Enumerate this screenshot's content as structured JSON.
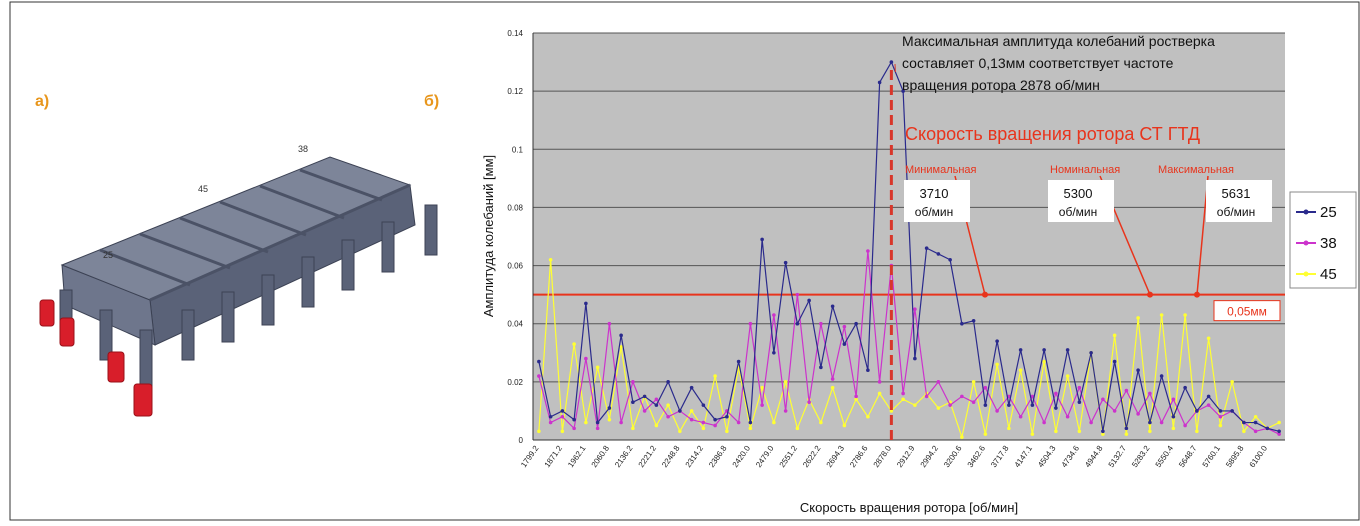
{
  "panels": {
    "a": "а)",
    "b": "б)"
  },
  "model": {
    "labels": [
      "25",
      "45",
      "38"
    ]
  },
  "chart_data": {
    "type": "line",
    "x_label": "Скорость вращения ротора [об/мин]",
    "y_label": "Амплитуда колебаний [мм]",
    "ylim": [
      0,
      0.14
    ],
    "yticks": [
      0,
      0.02,
      0.04,
      0.06,
      0.08,
      0.1,
      0.12,
      0.14
    ],
    "grid": true,
    "legend": "right",
    "categories": [
      "1799.2",
      null,
      "1871.2",
      null,
      "1962.1",
      null,
      "2060.8",
      null,
      "2136.2",
      null,
      "2221.2",
      null,
      "2248.8",
      null,
      "2314.2",
      null,
      "2386.8",
      null,
      "2420.0",
      null,
      "2479.0",
      null,
      "2551.2",
      null,
      "2622.2",
      null,
      "2694.3",
      null,
      "2786.6",
      null,
      "2878.0",
      null,
      "2912.9",
      null,
      "2994.2",
      null,
      "3200.6",
      null,
      "3462.6",
      null,
      "3717.8",
      null,
      "4147.1",
      null,
      "4504.3",
      null,
      "4734.6",
      null,
      "4944.8",
      null,
      "5132.7",
      null,
      "5283.2",
      null,
      "5550.4",
      null,
      "5648.7",
      null,
      "5760.1",
      null,
      "5895.8",
      null,
      "6100.0",
      null
    ],
    "series": [
      {
        "name": "25",
        "color": "#2a2a8c",
        "values": [
          0.027,
          0.008,
          0.01,
          0.007,
          0.047,
          0.006,
          0.011,
          0.036,
          0.013,
          0.015,
          0.012,
          0.02,
          0.01,
          0.018,
          0.012,
          0.007,
          0.008,
          0.027,
          0.006,
          0.069,
          0.03,
          0.061,
          0.04,
          0.048,
          0.025,
          0.046,
          0.033,
          0.04,
          0.024,
          0.123,
          0.13,
          0.12,
          0.028,
          0.066,
          0.064,
          0.062,
          0.04,
          0.041,
          0.012,
          0.034,
          0.012,
          0.031,
          0.012,
          0.031,
          0.011,
          0.031,
          0.013,
          0.03,
          0.003,
          0.027,
          0.004,
          0.024,
          0.006,
          0.022,
          0.008,
          0.018,
          0.01,
          0.015,
          0.01,
          0.01,
          0.006,
          0.006,
          0.004,
          0.003
        ]
      },
      {
        "name": "38",
        "color": "#cc33cc",
        "values": [
          0.022,
          0.006,
          0.008,
          0.004,
          0.028,
          0.004,
          0.04,
          0.006,
          0.02,
          0.01,
          0.014,
          0.008,
          0.01,
          0.007,
          0.006,
          0.005,
          0.01,
          0.006,
          0.04,
          0.012,
          0.043,
          0.01,
          0.05,
          0.013,
          0.04,
          0.021,
          0.039,
          0.015,
          0.065,
          0.02,
          0.06,
          0.016,
          0.045,
          0.015,
          0.02,
          0.012,
          0.015,
          0.013,
          0.018,
          0.01,
          0.015,
          0.008,
          0.015,
          0.006,
          0.016,
          0.008,
          0.018,
          0.006,
          0.014,
          0.01,
          0.017,
          0.009,
          0.016,
          0.006,
          0.014,
          0.005,
          0.01,
          0.012,
          0.008,
          0.01,
          0.006,
          0.003,
          0.004,
          0.002
        ]
      },
      {
        "name": "45",
        "color": "#ffff33",
        "values": [
          0.003,
          0.062,
          0.003,
          0.033,
          0.006,
          0.025,
          0.007,
          0.032,
          0.004,
          0.015,
          0.005,
          0.012,
          0.003,
          0.01,
          0.004,
          0.022,
          0.003,
          0.025,
          0.004,
          0.018,
          0.006,
          0.02,
          0.004,
          0.014,
          0.006,
          0.018,
          0.005,
          0.014,
          0.008,
          0.016,
          0.01,
          0.014,
          0.012,
          0.016,
          0.011,
          0.013,
          0.001,
          0.02,
          0.002,
          0.026,
          0.004,
          0.024,
          0.002,
          0.027,
          0.003,
          0.022,
          0.003,
          0.03,
          0.002,
          0.036,
          0.002,
          0.042,
          0.003,
          0.043,
          0.004,
          0.043,
          0.003,
          0.035,
          0.005,
          0.02,
          0.003,
          0.008,
          0.004,
          0.006
        ]
      }
    ],
    "annotation": [
      "Максимальная амплитуда колебаний ростверка",
      "составляет  0,13мм соответствует частоте",
      "вращения ротора 2878 об/мин"
    ],
    "speed_title": "Скорость вращения ротора СТ ГТД",
    "speed_markers": [
      {
        "label": "Минимальная",
        "value": 3710,
        "unit": "об/мин"
      },
      {
        "label": "Номинальная",
        "value": 5300,
        "unit": "об/мин"
      },
      {
        "label": "Максимальная",
        "value": 5631,
        "unit": "об/мин"
      }
    ],
    "ref_line": {
      "value": 0.05,
      "label": "0,05мм",
      "color": "#e8341c"
    }
  }
}
